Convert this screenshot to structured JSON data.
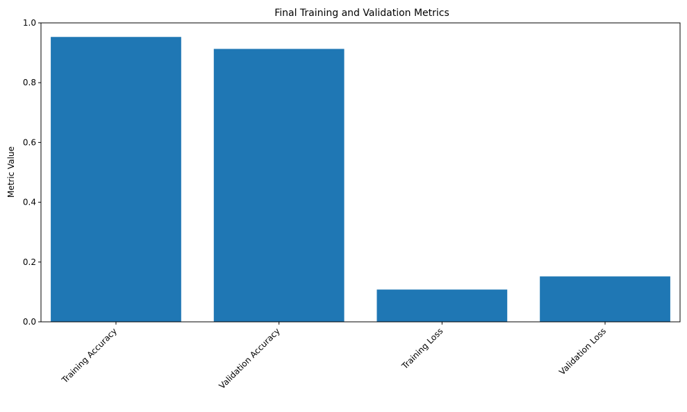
{
  "chart_data": {
    "type": "bar",
    "title": "Final Training and Validation Metrics",
    "xlabel": "",
    "ylabel": "Metric Value",
    "categories": [
      "Training Accuracy",
      "Validation Accuracy",
      "Training Loss",
      "Validation Loss"
    ],
    "values": [
      0.953,
      0.913,
      0.108,
      0.152
    ],
    "ylim": [
      0,
      1.0
    ],
    "yticks": [
      0.0,
      0.2,
      0.4,
      0.6,
      0.8,
      1.0
    ],
    "ytick_labels": [
      "0.0",
      "0.2",
      "0.4",
      "0.6",
      "0.8",
      "1.0"
    ],
    "bar_color": "#1f77b4",
    "grid": false,
    "legend": "none"
  }
}
